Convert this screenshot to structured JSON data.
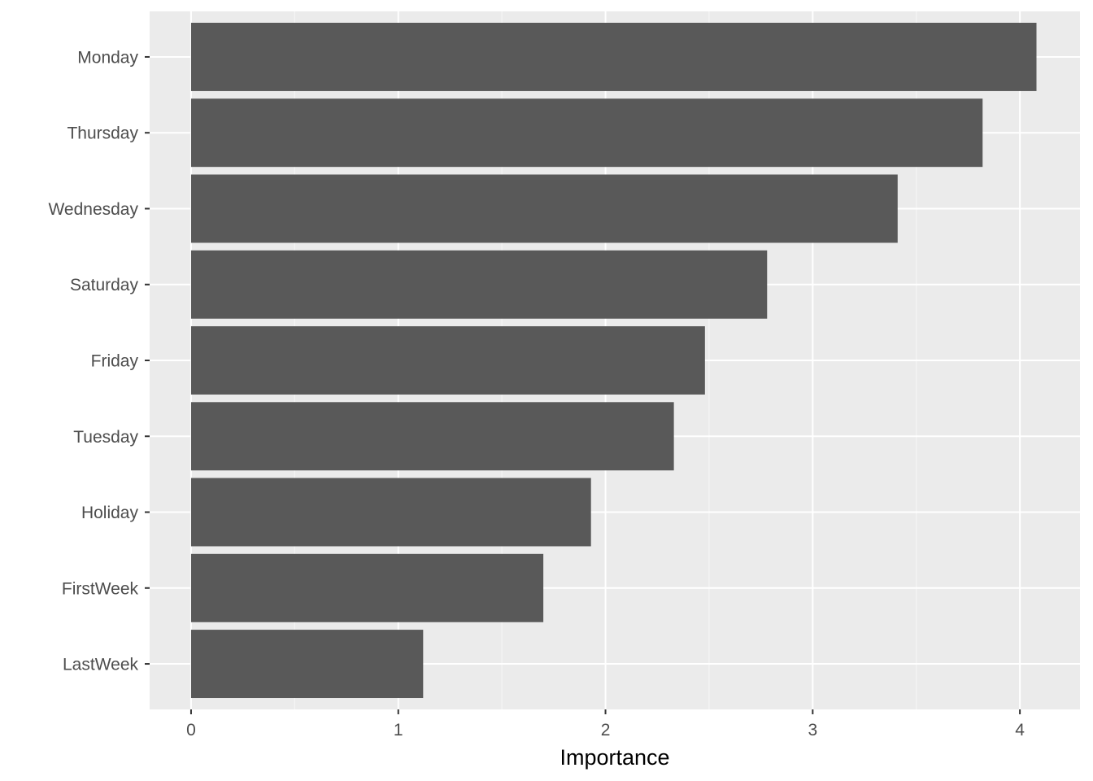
{
  "chart_data": {
    "type": "bar",
    "orientation": "horizontal",
    "categories": [
      "Monday",
      "Thursday",
      "Wednesday",
      "Saturday",
      "Friday",
      "Tuesday",
      "Holiday",
      "FirstWeek",
      "LastWeek"
    ],
    "values": [
      4.08,
      3.82,
      3.41,
      2.78,
      2.48,
      2.33,
      1.93,
      1.7,
      1.12
    ],
    "title": "",
    "xlabel": "Importance",
    "ylabel": "",
    "xlim": [
      -0.2,
      4.29
    ],
    "xticks": [
      0,
      1,
      2,
      3,
      4
    ],
    "grid": true,
    "legend": "none",
    "colors": {
      "bar": "#595959",
      "panel": "#ebebeb",
      "grid_major": "#ffffff",
      "tick_text": "#4d4d4d",
      "tick_mark": "#333333"
    }
  }
}
